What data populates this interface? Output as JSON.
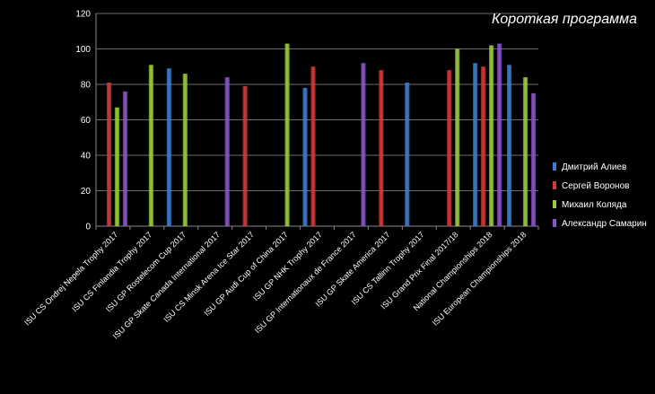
{
  "chart_data": {
    "type": "bar",
    "title": "Короткая программа",
    "xlabel": "",
    "ylabel": "",
    "ylim": [
      0,
      120
    ],
    "yticks": [
      0,
      20,
      40,
      60,
      80,
      100,
      120
    ],
    "grid": true,
    "legend_position": "right",
    "categories": [
      "ISU CS Ondrej Nepela Trophy 2017",
      "ISU CS Finlandia Trophy 2017",
      "ISU GP Rostelecom Cup 2017",
      "ISU GP Skate Canada International 2017",
      "ISU CS Minsk Arena Ice Star 2017",
      "ISU GP Audi Cup of China 2017",
      "ISU GP NHK Trophy 2017",
      "ISU GP Internationaux de France 2017",
      "ISU GP Skate America 2017",
      "ISU CS Tallinn Trophy 2017",
      "ISU Grand Prix Final 2017/18",
      "National Championships 2018",
      "ISU European Championships 2018"
    ],
    "series": [
      {
        "name": "Дмитрий Алиев",
        "color": "#3a7fd0",
        "values": [
          null,
          null,
          89,
          null,
          null,
          null,
          78,
          null,
          null,
          81,
          null,
          92,
          91
        ]
      },
      {
        "name": "Сергей Воронов",
        "color": "#d33a3a",
        "values": [
          81,
          null,
          null,
          null,
          79,
          null,
          90,
          null,
          88,
          null,
          88,
          90,
          null
        ]
      },
      {
        "name": "Михаил Коляда",
        "color": "#9ccc3a",
        "values": [
          67,
          91,
          86,
          null,
          null,
          103,
          null,
          null,
          null,
          null,
          100,
          102,
          84
        ]
      },
      {
        "name": "Александр Самарин",
        "color": "#8a55c8",
        "values": [
          76,
          null,
          null,
          84,
          null,
          null,
          null,
          92,
          null,
          null,
          null,
          103,
          75
        ]
      }
    ]
  }
}
